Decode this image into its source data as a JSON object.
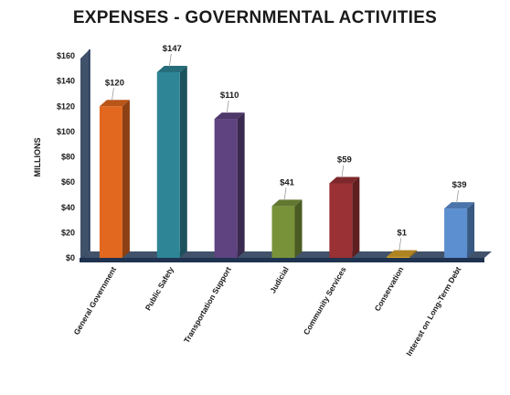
{
  "chart_data": {
    "type": "bar",
    "title": "EXPENSES - GOVERNMENTAL ACTIVITIES",
    "ylabel": "MILLIONS",
    "xlabel": "",
    "ylim": [
      0,
      160
    ],
    "yticks": [
      "$0",
      "$20",
      "$40",
      "$60",
      "$80",
      "$100",
      "$120",
      "$140",
      "$160"
    ],
    "ytick_values": [
      0,
      20,
      40,
      60,
      80,
      100,
      120,
      140,
      160
    ],
    "grid": false,
    "legend": "none",
    "categories": [
      "General Government",
      "Public Safety",
      "Transportation Support",
      "Judicial",
      "Community Services",
      "Conservation",
      "Interest on Long-Term Debt"
    ],
    "values": [
      120,
      147,
      110,
      41,
      59,
      1,
      39
    ],
    "data_labels": [
      "$120",
      "$147",
      "$110",
      "$41",
      "$59",
      "$1",
      "$39"
    ],
    "colors": [
      "#e2681f",
      "#2e8596",
      "#5f4380",
      "#78923a",
      "#9a3134",
      "#d4a02a",
      "#5b8fd0"
    ],
    "floor_color": "#1f3350",
    "axis_color": "#1f3350"
  }
}
